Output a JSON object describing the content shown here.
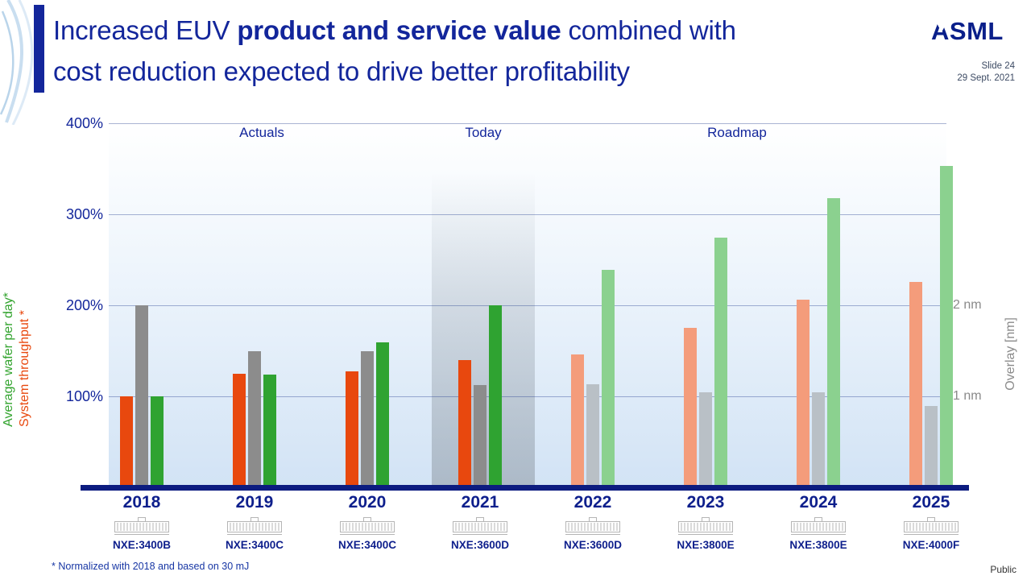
{
  "header": {
    "title_part1": "Increased EUV ",
    "title_bold": "product and service value",
    "title_part2": " combined with",
    "title_line2": "cost reduction expected to drive better profitability",
    "logo": "ASML",
    "slide_number": "Slide 24",
    "date": "29 Sept. 2021"
  },
  "chart_data": {
    "type": "bar",
    "title": "Increased EUV product and service value combined with cost reduction expected to drive better profitability",
    "unit": "%",
    "ylim": [
      0,
      400
    ],
    "y_ticks": [
      {
        "label": "400%",
        "value": 400
      },
      {
        "label": "300%",
        "value": 300
      },
      {
        "label": "200%",
        "value": 200
      },
      {
        "label": "100%",
        "value": 100
      }
    ],
    "sections": [
      "Actuals",
      "Today",
      "Roadmap"
    ],
    "categories": [
      "2018",
      "2019",
      "2020",
      "2021",
      "2022",
      "2023",
      "2024",
      "2025"
    ],
    "machines": [
      "NXE:3400B",
      "NXE:3400C",
      "NXE:3400C",
      "NXE:3600D",
      "NXE:3600D",
      "NXE:3800E",
      "NXE:3800E",
      "NXE:4000F"
    ],
    "roadmap_start_index": 4,
    "series": [
      {
        "key": "throughput",
        "name": "System throughput *",
        "color_actual": "#e8480e",
        "color_roadmap": "#f49c7b",
        "values": [
          100,
          125,
          127,
          140,
          146,
          175,
          206,
          226
        ]
      },
      {
        "key": "overlay",
        "name": "Overlay [nm]",
        "color_actual": "#8c8c8c",
        "color_roadmap": "#b9c0c6",
        "values": [
          200,
          150,
          150,
          112,
          113,
          104,
          104,
          89
        ]
      },
      {
        "key": "wafers",
        "name": "Average wafer per day*",
        "color_actual": "#2fa331",
        "color_roadmap": "#8bd18f",
        "values": [
          100,
          124,
          159,
          200,
          239,
          274,
          318,
          353
        ]
      }
    ],
    "left_labels": {
      "wafer": "Average wafer per day*",
      "throughput": "System throughput *"
    },
    "right_axis": {
      "label": "Overlay [nm]",
      "ticks": [
        {
          "label": "2 nm",
          "value": 200
        },
        {
          "label": "1 nm",
          "value": 100
        }
      ]
    }
  },
  "footer": {
    "footnote": "* Normalized with 2018 and based on 30 mJ",
    "classification": "Public"
  }
}
